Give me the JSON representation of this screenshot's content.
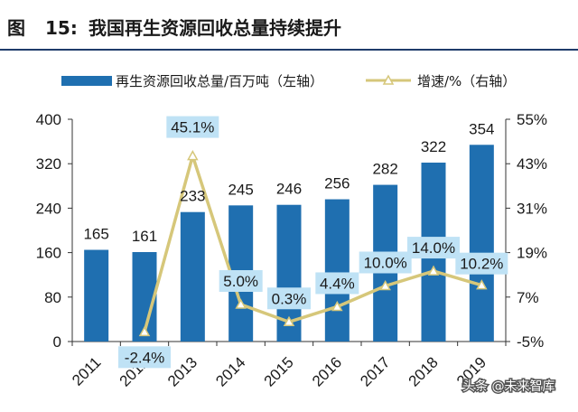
{
  "title": {
    "prefix": "图",
    "number": "15:",
    "text": "我国再生资源回收总量持续提升"
  },
  "watermark": "头条 @未来智库",
  "colors": {
    "bar": "#1f6fb0",
    "line": "#d6c77a",
    "label_bg": "#bfe2f5",
    "title_rule": "#1f3b6a"
  },
  "chart_data": {
    "type": "bar+line",
    "categories": [
      "2011",
      "2012",
      "2013",
      "2014",
      "2015",
      "2016",
      "2017",
      "2018",
      "2019"
    ],
    "series": [
      {
        "name": "再生资源回收总量/百万吨（左轴）",
        "type": "bar",
        "axis": "left",
        "values": [
          165,
          161,
          233,
          245,
          246,
          256,
          282,
          322,
          354
        ],
        "labels": [
          "165",
          "161",
          "233",
          "245",
          "246",
          "256",
          "282",
          "322",
          "354"
        ]
      },
      {
        "name": "增速/%（右轴）",
        "type": "line",
        "axis": "right",
        "values": [
          null,
          -2.4,
          45.1,
          5.0,
          0.3,
          4.4,
          10.0,
          14.0,
          10.2
        ],
        "labels": [
          "",
          "-2.4%",
          "45.1%",
          "5.0%",
          "0.3%",
          "4.4%",
          "10.0%",
          "14.0%",
          "10.2%"
        ]
      }
    ],
    "y_left": {
      "ylim": [
        0,
        400
      ],
      "ticks": [
        "0",
        "80",
        "160",
        "240",
        "320",
        "400"
      ]
    },
    "y_right": {
      "ylim": [
        -5,
        55
      ],
      "ticks": [
        "-5%",
        "7%",
        "19%",
        "31%",
        "43%",
        "55%"
      ]
    },
    "legend_position": "top",
    "grid": false
  }
}
